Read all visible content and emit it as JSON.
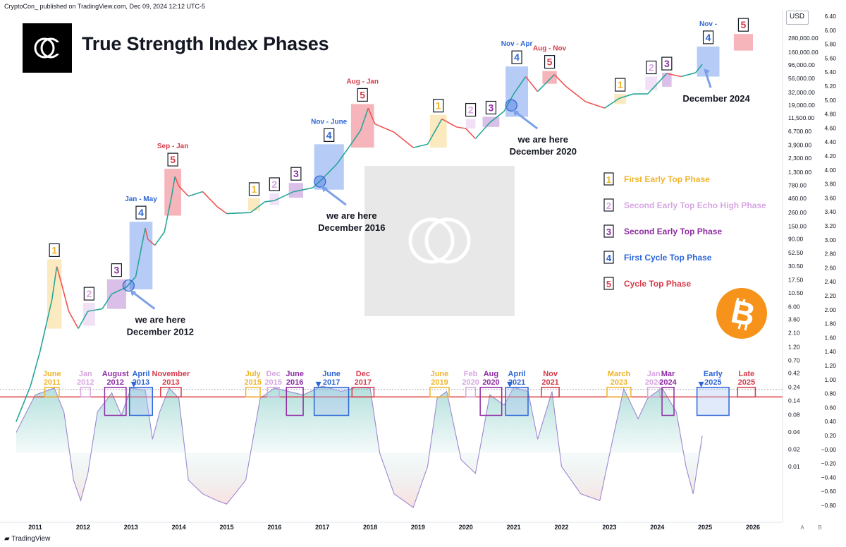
{
  "header": {
    "publisher": "CryptoCon_ published on TradingView.com, Dec 09, 2024 12:12 UTC-5",
    "title": "True Strength Index Phases",
    "currency": "USD",
    "footer": "TradingView"
  },
  "colors": {
    "p1": "#f0b429",
    "p2": "#d7a6e2",
    "p3": "#8e2ca3",
    "p4": "#2d65d6",
    "p5": "#d63a4a",
    "p1_fill": "#fae6b5",
    "p2_fill": "#eedcf4",
    "p3_fill": "#d4b4e4",
    "p4_fill": "#a9c2f4",
    "p5_fill": "#f4a8ae",
    "price_up": "#26a69a",
    "price_down": "#ef5350",
    "tsi_line": "#9c88d0",
    "threshold": "#e03b3b",
    "bitcoin": "#f7931a"
  },
  "legend": [
    {
      "num": "1",
      "label": "First Early Top Phase",
      "phase": "p1"
    },
    {
      "num": "2",
      "label": "Second Early Top Echo High Phase",
      "phase": "p2"
    },
    {
      "num": "3",
      "label": "Second Early Top Phase",
      "phase": "p3"
    },
    {
      "num": "4",
      "label": "First Cycle Top Phase",
      "phase": "p4"
    },
    {
      "num": "5",
      "label": "Cycle Top Phase",
      "phase": "p5"
    }
  ],
  "chart_data": {
    "type": "line",
    "x_axis_labels": [
      "2011",
      "2012",
      "2013",
      "2014",
      "2015",
      "2016",
      "2017",
      "2018",
      "2019",
      "2020",
      "2021",
      "2022",
      "2023",
      "2024",
      "2025",
      "2026"
    ],
    "price_axis_labels": [
      "280,000.00",
      "160,000.00",
      "96,000.00",
      "56,000.00",
      "32,000.00",
      "19,000.00",
      "11,500.00",
      "6,700.00",
      "3,900.00",
      "2,300.00",
      "1,300.00",
      "780.00",
      "460.00",
      "260.00",
      "150.00",
      "90.00",
      "52.50",
      "30.50",
      "17.50",
      "10.50",
      "6.00",
      "3.60",
      "2.10",
      "1.20",
      "0.70",
      "0.42",
      "0.24",
      "0.14",
      "0.08",
      "0.04",
      "0.02",
      "0.01"
    ],
    "tsi_axis_labels": [
      "6.40",
      "6.00",
      "5.80",
      "5.60",
      "5.40",
      "5.20",
      "5.00",
      "4.80",
      "4.60",
      "4.40",
      "4.20",
      "4.00",
      "3.80",
      "3.60",
      "3.40",
      "3.20",
      "3.00",
      "2.80",
      "2.60",
      "2.40",
      "2.20",
      "2.00",
      "1.80",
      "1.60",
      "1.40",
      "1.20",
      "1.00",
      "0.80",
      "0.60",
      "0.40",
      "0.20",
      "−0.00",
      "−0.20",
      "−0.40",
      "−0.60",
      "−0.80"
    ],
    "price_scale": "log",
    "price_series": {
      "name": "BTCUSD",
      "points": [
        [
          2010.6,
          0.06
        ],
        [
          2010.9,
          0.25
        ],
        [
          2011.1,
          1.0
        ],
        [
          2011.35,
          8
        ],
        [
          2011.45,
          30
        ],
        [
          2011.55,
          15
        ],
        [
          2011.7,
          5
        ],
        [
          2011.9,
          2.5
        ],
        [
          2012.1,
          5
        ],
        [
          2012.4,
          5.5
        ],
        [
          2012.6,
          10
        ],
        [
          2012.9,
          13
        ],
        [
          2013.1,
          20
        ],
        [
          2013.3,
          140
        ],
        [
          2013.35,
          90
        ],
        [
          2013.5,
          70
        ],
        [
          2013.7,
          120
        ],
        [
          2013.85,
          500
        ],
        [
          2013.92,
          1100
        ],
        [
          2014.0,
          750
        ],
        [
          2014.2,
          500
        ],
        [
          2014.5,
          600
        ],
        [
          2014.8,
          330
        ],
        [
          2015.0,
          250
        ],
        [
          2015.5,
          260
        ],
        [
          2015.8,
          400
        ],
        [
          2016.0,
          420
        ],
        [
          2016.4,
          600
        ],
        [
          2016.8,
          700
        ],
        [
          2017.0,
          1000
        ],
        [
          2017.3,
          1800
        ],
        [
          2017.6,
          4000
        ],
        [
          2017.8,
          7000
        ],
        [
          2017.96,
          17000
        ],
        [
          2018.1,
          9000
        ],
        [
          2018.5,
          6500
        ],
        [
          2018.9,
          3500
        ],
        [
          2019.2,
          4000
        ],
        [
          2019.5,
          11000
        ],
        [
          2019.8,
          8000
        ],
        [
          2020.0,
          7500
        ],
        [
          2020.2,
          5000
        ],
        [
          2020.5,
          9500
        ],
        [
          2020.8,
          15000
        ],
        [
          2021.0,
          30000
        ],
        [
          2021.25,
          60000
        ],
        [
          2021.5,
          33000
        ],
        [
          2021.85,
          65000
        ],
        [
          2022.1,
          40000
        ],
        [
          2022.5,
          22000
        ],
        [
          2022.9,
          17000
        ],
        [
          2023.2,
          25000
        ],
        [
          2023.5,
          30000
        ],
        [
          2023.8,
          30000
        ],
        [
          2024.2,
          68000
        ],
        [
          2024.5,
          60000
        ],
        [
          2024.8,
          70000
        ],
        [
          2024.94,
          98000
        ]
      ]
    },
    "tsi_series": {
      "name": "TSI",
      "points": [
        [
          2010.6,
          0.3
        ],
        [
          2011.0,
          0.85
        ],
        [
          2011.4,
          0.95
        ],
        [
          2011.6,
          0.6
        ],
        [
          2011.8,
          -0.4
        ],
        [
          2011.95,
          -0.7
        ],
        [
          2012.1,
          -0.3
        ],
        [
          2012.3,
          0.6
        ],
        [
          2012.6,
          0.88
        ],
        [
          2012.8,
          0.55
        ],
        [
          2013.0,
          0.95
        ],
        [
          2013.3,
          0.92
        ],
        [
          2013.45,
          0.2
        ],
        [
          2013.6,
          0.6
        ],
        [
          2013.8,
          0.95
        ],
        [
          2014.0,
          0.8
        ],
        [
          2014.2,
          -0.4
        ],
        [
          2014.5,
          -0.6
        ],
        [
          2014.8,
          -0.7
        ],
        [
          2015.0,
          -0.75
        ],
        [
          2015.4,
          -0.4
        ],
        [
          2015.7,
          0.8
        ],
        [
          2016.0,
          0.95
        ],
        [
          2016.3,
          0.9
        ],
        [
          2016.6,
          0.85
        ],
        [
          2017.0,
          0.98
        ],
        [
          2017.4,
          0.9
        ],
        [
          2017.7,
          0.96
        ],
        [
          2018.0,
          0.95
        ],
        [
          2018.2,
          0.0
        ],
        [
          2018.5,
          -0.6
        ],
        [
          2018.9,
          -0.8
        ],
        [
          2019.2,
          -0.2
        ],
        [
          2019.4,
          0.8
        ],
        [
          2019.6,
          0.9
        ],
        [
          2019.9,
          -0.1
        ],
        [
          2020.2,
          -0.3
        ],
        [
          2020.5,
          0.85
        ],
        [
          2020.8,
          0.7
        ],
        [
          2021.0,
          0.96
        ],
        [
          2021.3,
          0.9
        ],
        [
          2021.5,
          0.2
        ],
        [
          2021.8,
          0.9
        ],
        [
          2022.0,
          -0.2
        ],
        [
          2022.4,
          -0.6
        ],
        [
          2022.8,
          -0.7
        ],
        [
          2023.1,
          0.3
        ],
        [
          2023.3,
          0.94
        ],
        [
          2023.6,
          0.5
        ],
        [
          2023.8,
          0.8
        ],
        [
          2024.1,
          0.95
        ],
        [
          2024.4,
          0.6
        ],
        [
          2024.6,
          -0.2
        ],
        [
          2024.75,
          -0.6
        ],
        [
          2024.94,
          0.25
        ]
      ]
    },
    "tsi_threshold": 0.82,
    "price_phases": [
      {
        "num": "1",
        "phase": "p1",
        "x0": 2011.25,
        "x1": 2011.55,
        "low": 2.5,
        "high": 40
      },
      {
        "num": "2",
        "phase": "p2",
        "x0": 2012.0,
        "x1": 2012.25,
        "low": 2.8,
        "high": 7
      },
      {
        "num": "3",
        "phase": "p3",
        "x0": 2012.5,
        "x1": 2012.9,
        "low": 5.5,
        "high": 18
      },
      {
        "num": "4",
        "phase": "p4",
        "x0": 2012.97,
        "x1": 2013.45,
        "low": 12,
        "high": 180,
        "label": "Jan - May"
      },
      {
        "num": "5",
        "phase": "p5",
        "x0": 2013.7,
        "x1": 2014.05,
        "low": 230,
        "high": 1500,
        "label": "Sep - Jan"
      },
      {
        "num": "1",
        "phase": "p1",
        "x0": 2015.45,
        "x1": 2015.7,
        "low": 280,
        "high": 460
      },
      {
        "num": "2",
        "phase": "p2",
        "x0": 2015.9,
        "x1": 2016.1,
        "low": 350,
        "high": 560
      },
      {
        "num": "3",
        "phase": "p3",
        "x0": 2016.3,
        "x1": 2016.6,
        "low": 470,
        "high": 850
      },
      {
        "num": "4",
        "phase": "p4",
        "x0": 2016.83,
        "x1": 2017.45,
        "low": 650,
        "high": 4000,
        "label": "Nov - June"
      },
      {
        "num": "5",
        "phase": "p5",
        "x0": 2017.6,
        "x1": 2018.08,
        "low": 3500,
        "high": 20000,
        "label": "Aug - Jan"
      },
      {
        "num": "1",
        "phase": "p1",
        "x0": 2019.25,
        "x1": 2019.6,
        "low": 3500,
        "high": 13000
      },
      {
        "num": "2",
        "phase": "p2",
        "x0": 2020.0,
        "x1": 2020.2,
        "low": 7500,
        "high": 11000
      },
      {
        "num": "3",
        "phase": "p3",
        "x0": 2020.35,
        "x1": 2020.7,
        "low": 8000,
        "high": 12000
      },
      {
        "num": "4",
        "phase": "p4",
        "x0": 2020.83,
        "x1": 2021.3,
        "low": 12000,
        "high": 90000,
        "label": "Nov - Apr"
      },
      {
        "num": "5",
        "phase": "p5",
        "x0": 2021.6,
        "x1": 2021.9,
        "low": 45000,
        "high": 75000,
        "label": "Aug - Nov"
      },
      {
        "num": "1",
        "phase": "p1",
        "x0": 2023.1,
        "x1": 2023.35,
        "low": 20000,
        "high": 30000
      },
      {
        "num": "2",
        "phase": "p2",
        "x0": 2023.75,
        "x1": 2024.0,
        "low": 35000,
        "high": 60000
      },
      {
        "num": "3",
        "phase": "p3",
        "x0": 2024.1,
        "x1": 2024.3,
        "low": 40000,
        "high": 70000
      },
      {
        "num": "4",
        "phase": "p4",
        "x0": 2024.83,
        "x1": 2025.3,
        "low": 60000,
        "high": 200000,
        "label": "Nov -"
      },
      {
        "num": "5",
        "phase": "p5",
        "x0": 2025.6,
        "x1": 2026.0,
        "low": 170000,
        "high": 330000
      }
    ],
    "tsi_phases": [
      {
        "phase": "p1",
        "x0": 2011.2,
        "x1": 2011.5,
        "label": [
          "June",
          "2011"
        ]
      },
      {
        "phase": "p2",
        "x0": 2011.95,
        "x1": 2012.15,
        "label": [
          "Jan",
          "2012"
        ]
      },
      {
        "phase": "p3",
        "x0": 2012.45,
        "x1": 2012.9,
        "label": [
          "August",
          "2012"
        ]
      },
      {
        "phase": "p4",
        "x0": 2012.97,
        "x1": 2013.45,
        "label": [
          "April",
          "2013"
        ]
      },
      {
        "phase": "p5",
        "x0": 2013.62,
        "x1": 2014.05,
        "label": [
          "November",
          "2013"
        ]
      },
      {
        "phase": "p1",
        "x0": 2015.4,
        "x1": 2015.7,
        "label": [
          "July",
          "2015"
        ]
      },
      {
        "phase": "p2",
        "x0": 2015.85,
        "x1": 2016.1,
        "label": [
          "Dec",
          "2015"
        ]
      },
      {
        "phase": "p3",
        "x0": 2016.25,
        "x1": 2016.6,
        "label": [
          "June",
          "2016"
        ]
      },
      {
        "phase": "p4",
        "x0": 2016.83,
        "x1": 2017.55,
        "label": [
          "June",
          "2017"
        ]
      },
      {
        "phase": "p5",
        "x0": 2017.62,
        "x1": 2018.08,
        "label": [
          "Dec",
          "2017"
        ]
      },
      {
        "phase": "p1",
        "x0": 2019.25,
        "x1": 2019.65,
        "label": [
          "June",
          "2019"
        ]
      },
      {
        "phase": "p2",
        "x0": 2020.0,
        "x1": 2020.2,
        "label": [
          "Feb",
          "2020"
        ]
      },
      {
        "phase": "p3",
        "x0": 2020.3,
        "x1": 2020.75,
        "label": [
          "Aug",
          "2020"
        ]
      },
      {
        "phase": "p4",
        "x0": 2020.83,
        "x1": 2021.3,
        "label": [
          "April",
          "2021"
        ]
      },
      {
        "phase": "p5",
        "x0": 2021.58,
        "x1": 2021.95,
        "label": [
          "Nov",
          "2021"
        ]
      },
      {
        "phase": "p1",
        "x0": 2022.95,
        "x1": 2023.45,
        "label": [
          "March",
          "2023"
        ]
      },
      {
        "phase": "p2",
        "x0": 2023.8,
        "x1": 2024.05,
        "label": [
          "Jan",
          "2024"
        ]
      },
      {
        "phase": "p3",
        "x0": 2024.1,
        "x1": 2024.35,
        "label": [
          "Mar",
          "2024"
        ]
      },
      {
        "phase": "p4",
        "x0": 2024.83,
        "x1": 2025.5,
        "label": [
          "Early",
          "2025"
        ]
      },
      {
        "phase": "p5",
        "x0": 2025.68,
        "x1": 2026.05,
        "label": [
          "Late",
          "2025"
        ]
      }
    ],
    "here_markers": [
      {
        "x": 2012.95,
        "price": 14,
        "label": [
          "we are here",
          "December 2012"
        ]
      },
      {
        "x": 2016.95,
        "price": 900,
        "label": [
          "we are here",
          "December 2016"
        ]
      },
      {
        "x": 2020.95,
        "price": 19000,
        "label": [
          "we are here",
          "December 2020"
        ]
      },
      {
        "x": 2024.94,
        "price": 98000,
        "label": [
          "December 2024"
        ]
      }
    ]
  }
}
